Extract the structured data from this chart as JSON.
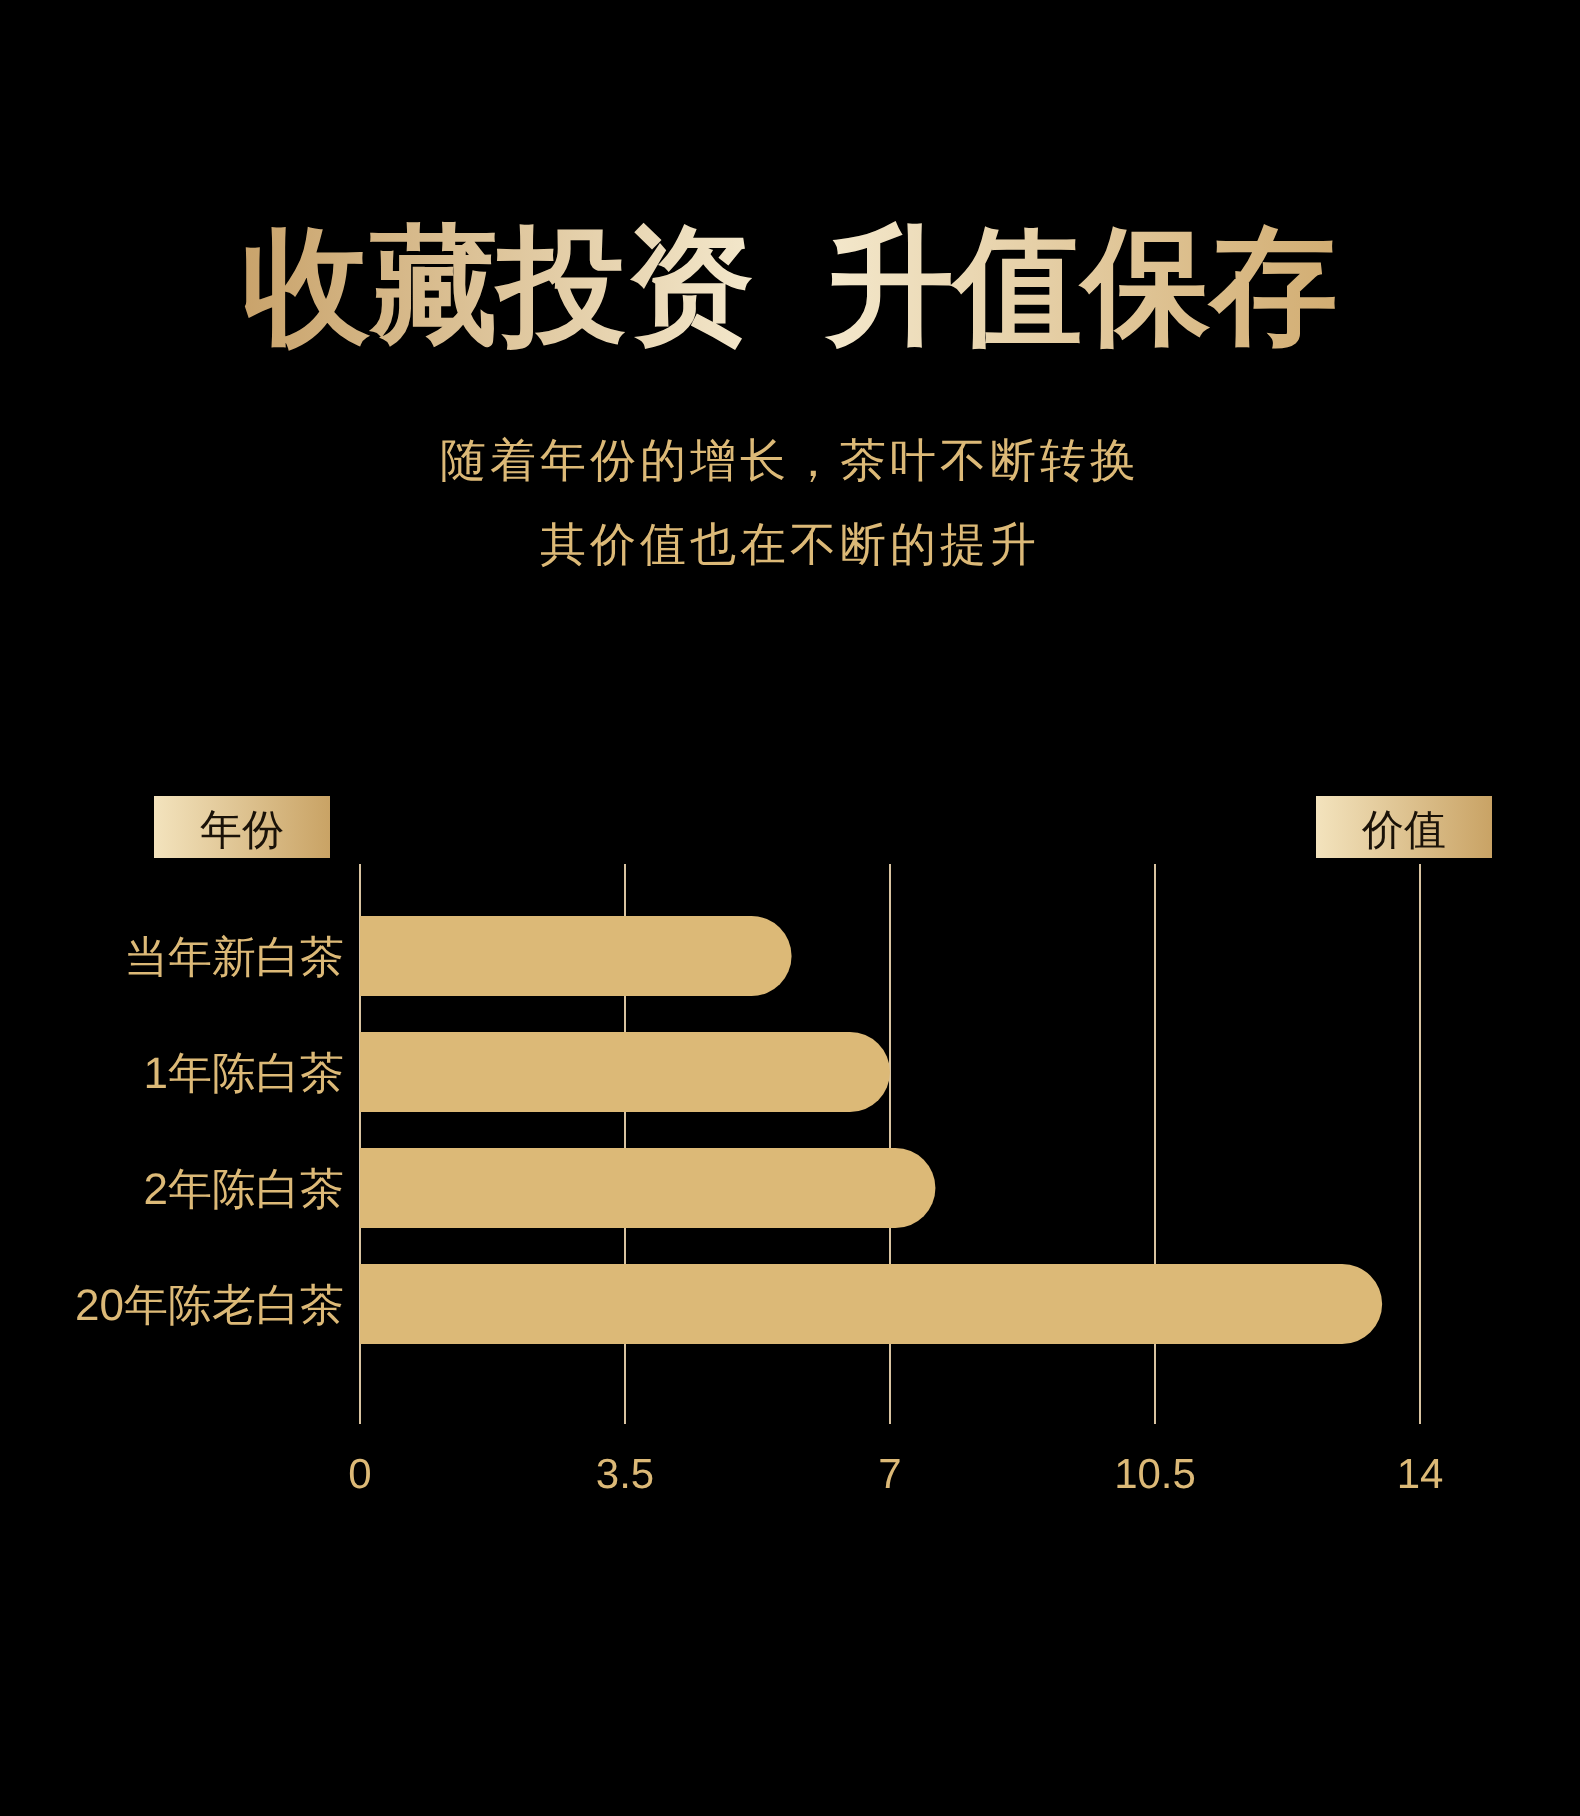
{
  "chart_data": {
    "type": "bar",
    "orientation": "horizontal",
    "title": "收藏投资  升值保存",
    "subtitle": "随着年份的增长，茶叶不断转换其价值也在不断的提升",
    "ylabel": "年份",
    "xlabel": "价值",
    "categories": [
      "当年新白茶",
      "1年陈白茶",
      "2年陈白茶",
      "20年陈老白茶"
    ],
    "values": [
      5.7,
      7.0,
      7.6,
      13.5
    ],
    "color": "#dcb977",
    "xlim": [
      0,
      14
    ],
    "xticks": [
      0,
      3.5,
      7,
      10.5,
      14
    ],
    "grid": "x"
  }
}
